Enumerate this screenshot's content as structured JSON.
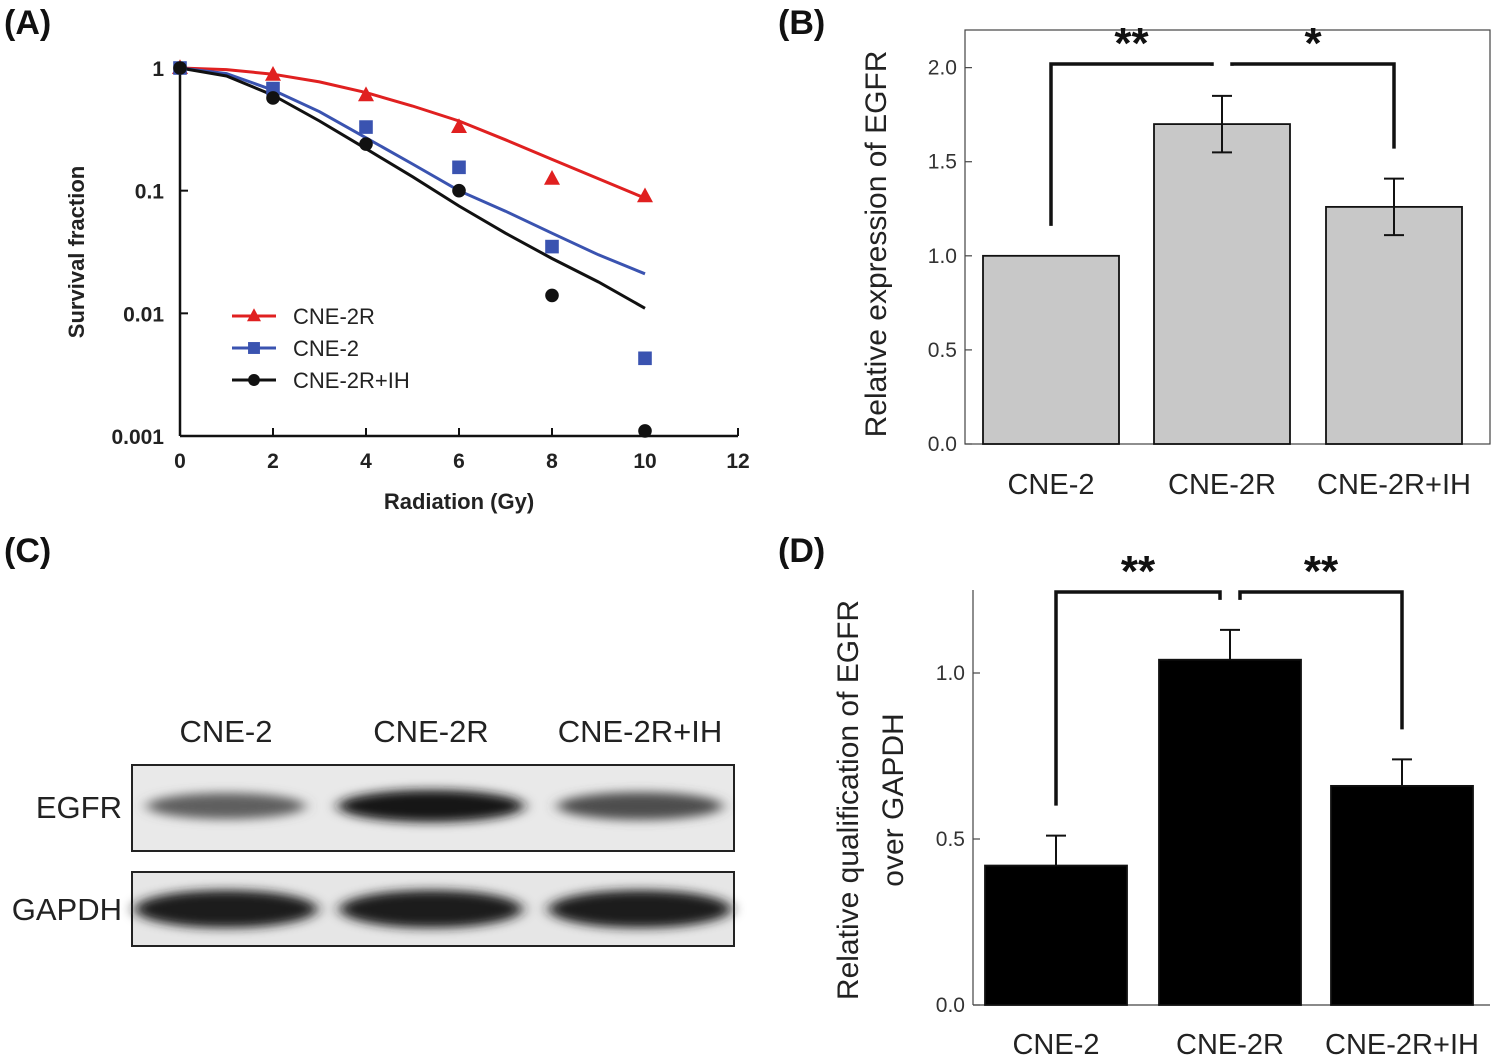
{
  "panels": {
    "a": "(A)",
    "b": "(B)",
    "c": "(C)",
    "d": "(D)"
  },
  "colors": {
    "cne2r": "#e02020",
    "cne2": "#3a53b0",
    "cne2r_ih": "#111111",
    "bar_b": "#c8c8c8",
    "bar_d": "#000000"
  },
  "chart_data": [
    {
      "panel": "A",
      "type": "scatter",
      "yscale": "log",
      "xlabel": "Radiation (Gy)",
      "ylabel": "Survival fraction",
      "xlim": [
        0,
        12
      ],
      "ylim": [
        0.001,
        1
      ],
      "x_ticks": [
        "0",
        "2",
        "4",
        "6",
        "8",
        "10",
        "12"
      ],
      "x_tick_values": [
        0,
        2,
        4,
        6,
        8,
        10,
        12
      ],
      "y_ticks": [
        "1",
        "0.1",
        "0.01",
        "0.001"
      ],
      "y_tick_values": [
        1,
        0.1,
        0.01,
        0.001
      ],
      "legend_position": "lower-left",
      "series": [
        {
          "name": "CNE-2R",
          "marker": "triangle",
          "x": [
            0,
            2,
            4,
            6,
            8,
            10
          ],
          "y": [
            1,
            0.88,
            0.6,
            0.33,
            0.125,
            0.09
          ],
          "fit_x": [
            0,
            1,
            2,
            3,
            4,
            5,
            6,
            7,
            8,
            9,
            10
          ],
          "fit_y": [
            1,
            0.97,
            0.89,
            0.77,
            0.63,
            0.49,
            0.37,
            0.26,
            0.18,
            0.125,
            0.087
          ]
        },
        {
          "name": "CNE-2",
          "marker": "square",
          "x": [
            0,
            2,
            4,
            6,
            8,
            10
          ],
          "y": [
            1,
            0.68,
            0.33,
            0.155,
            0.035,
            0.0043
          ],
          "fit_x": [
            0,
            1,
            2,
            3,
            4,
            5,
            6,
            7,
            8,
            9,
            10
          ],
          "fit_y": [
            1,
            0.9,
            0.66,
            0.44,
            0.27,
            0.165,
            0.1,
            0.068,
            0.045,
            0.03,
            0.021
          ]
        },
        {
          "name": "CNE-2R+IH",
          "marker": "circle",
          "x": [
            0,
            2,
            4,
            6,
            8,
            10
          ],
          "y": [
            1,
            0.57,
            0.24,
            0.1,
            0.014,
            0.0011
          ],
          "fit_x": [
            0,
            1,
            2,
            3,
            4,
            5,
            6,
            7,
            8,
            9,
            10
          ],
          "fit_y": [
            1,
            0.86,
            0.6,
            0.37,
            0.22,
            0.13,
            0.075,
            0.045,
            0.028,
            0.018,
            0.011
          ]
        }
      ]
    },
    {
      "panel": "B",
      "type": "bar",
      "categories": [
        "CNE-2",
        "CNE-2R",
        "CNE-2R+IH"
      ],
      "values": [
        1.0,
        1.7,
        1.26
      ],
      "errors": [
        0,
        0.15,
        0.15
      ],
      "ylabel": "Relative expression of EGFR",
      "ylim": [
        0,
        2.2
      ],
      "y_ticks": [
        "0.0",
        "0.5",
        "1.0",
        "1.5",
        "2.0"
      ],
      "y_tick_values": [
        0,
        0.5,
        1.0,
        1.5,
        2.0
      ],
      "significance": [
        {
          "pair": [
            0,
            1
          ],
          "label": "**"
        },
        {
          "pair": [
            1,
            2
          ],
          "label": "*"
        }
      ]
    },
    {
      "panel": "D",
      "type": "bar",
      "categories": [
        "CNE-2",
        "CNE-2R",
        "CNE-2R+IH"
      ],
      "values": [
        0.42,
        1.04,
        0.66
      ],
      "errors": [
        0.09,
        0.09,
        0.08
      ],
      "ylabel": [
        "Relative qualification of EGFR",
        "over GAPDH"
      ],
      "ylim": [
        0,
        1.25
      ],
      "y_ticks": [
        "0.0",
        "0.5",
        "1.0"
      ],
      "y_tick_values": [
        0,
        0.5,
        1.0
      ],
      "significance": [
        {
          "pair": [
            0,
            1
          ],
          "label": "**"
        },
        {
          "pair": [
            1,
            2
          ],
          "label": "**"
        }
      ]
    }
  ],
  "western_blot": {
    "lanes": [
      "CNE-2",
      "CNE-2R",
      "CNE-2R+IH"
    ],
    "rows": [
      {
        "label": "EGFR",
        "intensity": [
          0.55,
          0.95,
          0.65
        ]
      },
      {
        "label": "GAPDH",
        "intensity": [
          0.9,
          0.9,
          0.9
        ]
      }
    ]
  }
}
